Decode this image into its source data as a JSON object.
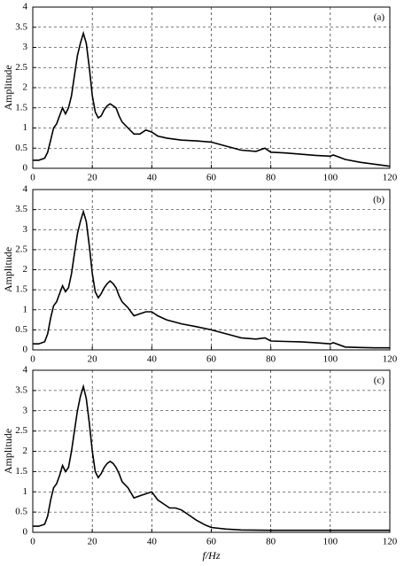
{
  "chart_data": [
    {
      "type": "line",
      "panel_label": "(a)",
      "ylabel": "Amplitude",
      "color": "#000000",
      "grid": true,
      "xlim": [
        0,
        120
      ],
      "ylim": [
        0,
        4
      ],
      "xticks": [
        0,
        20,
        40,
        60,
        80,
        100,
        120
      ],
      "yticks": [
        0,
        0.5,
        1,
        1.5,
        2,
        2.5,
        3,
        3.5,
        4
      ],
      "x": [
        0,
        2,
        4,
        5,
        6,
        7,
        8,
        9,
        10,
        11,
        12,
        13,
        14,
        15,
        16,
        17,
        18,
        19,
        20,
        21,
        22,
        23,
        24,
        25,
        26,
        27,
        28,
        29,
        30,
        32,
        34,
        36,
        38,
        40,
        42,
        45,
        50,
        55,
        60,
        65,
        70,
        75,
        78,
        80,
        85,
        90,
        95,
        100,
        101,
        105,
        110,
        115,
        120
      ],
      "values": [
        0.2,
        0.2,
        0.25,
        0.4,
        0.7,
        1.0,
        1.1,
        1.3,
        1.5,
        1.35,
        1.5,
        1.8,
        2.3,
        2.8,
        3.1,
        3.35,
        3.1,
        2.5,
        1.8,
        1.4,
        1.25,
        1.3,
        1.45,
        1.55,
        1.6,
        1.55,
        1.5,
        1.3,
        1.15,
        1.0,
        0.85,
        0.85,
        0.95,
        0.9,
        0.8,
        0.75,
        0.7,
        0.68,
        0.65,
        0.55,
        0.45,
        0.42,
        0.5,
        0.4,
        0.38,
        0.35,
        0.32,
        0.3,
        0.33,
        0.22,
        0.15,
        0.1,
        0.05
      ]
    },
    {
      "type": "line",
      "panel_label": "(b)",
      "ylabel": "Amplitude",
      "color": "#000000",
      "grid": true,
      "xlim": [
        0,
        120
      ],
      "ylim": [
        0,
        4
      ],
      "xticks": [
        0,
        20,
        40,
        60,
        80,
        100,
        120
      ],
      "yticks": [
        0,
        0.5,
        1,
        1.5,
        2,
        2.5,
        3,
        3.5,
        4
      ],
      "x": [
        0,
        2,
        4,
        5,
        6,
        7,
        8,
        9,
        10,
        11,
        12,
        13,
        14,
        15,
        16,
        17,
        18,
        19,
        20,
        21,
        22,
        23,
        24,
        25,
        26,
        27,
        28,
        29,
        30,
        32,
        34,
        36,
        38,
        40,
        42,
        45,
        50,
        55,
        60,
        65,
        70,
        75,
        78,
        80,
        85,
        90,
        95,
        100,
        101,
        105,
        110,
        115,
        120
      ],
      "values": [
        0.15,
        0.15,
        0.2,
        0.4,
        0.8,
        1.1,
        1.2,
        1.4,
        1.6,
        1.45,
        1.55,
        1.9,
        2.4,
        2.9,
        3.2,
        3.45,
        3.2,
        2.6,
        1.9,
        1.45,
        1.3,
        1.4,
        1.55,
        1.65,
        1.72,
        1.65,
        1.55,
        1.35,
        1.2,
        1.05,
        0.85,
        0.9,
        0.95,
        0.95,
        0.85,
        0.75,
        0.65,
        0.58,
        0.5,
        0.4,
        0.3,
        0.27,
        0.3,
        0.22,
        0.21,
        0.2,
        0.18,
        0.15,
        0.18,
        0.07,
        0.06,
        0.05,
        0.05
      ]
    },
    {
      "type": "line",
      "panel_label": "(c)",
      "ylabel": "Amplitude",
      "xlabel": "f/Hz",
      "color": "#000000",
      "grid": true,
      "xlim": [
        0,
        120
      ],
      "ylim": [
        0,
        4
      ],
      "xticks": [
        0,
        20,
        40,
        60,
        80,
        100,
        120
      ],
      "yticks": [
        0,
        0.5,
        1,
        1.5,
        2,
        2.5,
        3,
        3.5,
        4
      ],
      "x": [
        0,
        2,
        4,
        5,
        6,
        7,
        8,
        9,
        10,
        11,
        12,
        13,
        14,
        15,
        16,
        17,
        18,
        19,
        20,
        21,
        22,
        23,
        24,
        25,
        26,
        27,
        28,
        29,
        30,
        32,
        34,
        36,
        38,
        40,
        42,
        44,
        46,
        48,
        50,
        52,
        55,
        58,
        60,
        65,
        70,
        80,
        90,
        100,
        110,
        120
      ],
      "values": [
        0.15,
        0.15,
        0.2,
        0.4,
        0.8,
        1.1,
        1.2,
        1.4,
        1.65,
        1.5,
        1.6,
        2.0,
        2.5,
        3.0,
        3.35,
        3.6,
        3.3,
        2.7,
        2.0,
        1.5,
        1.35,
        1.45,
        1.6,
        1.7,
        1.75,
        1.7,
        1.6,
        1.45,
        1.25,
        1.1,
        0.85,
        0.9,
        0.95,
        1.0,
        0.8,
        0.7,
        0.6,
        0.6,
        0.55,
        0.45,
        0.3,
        0.18,
        0.12,
        0.08,
        0.06,
        0.05,
        0.05,
        0.05,
        0.05,
        0.05
      ]
    }
  ]
}
